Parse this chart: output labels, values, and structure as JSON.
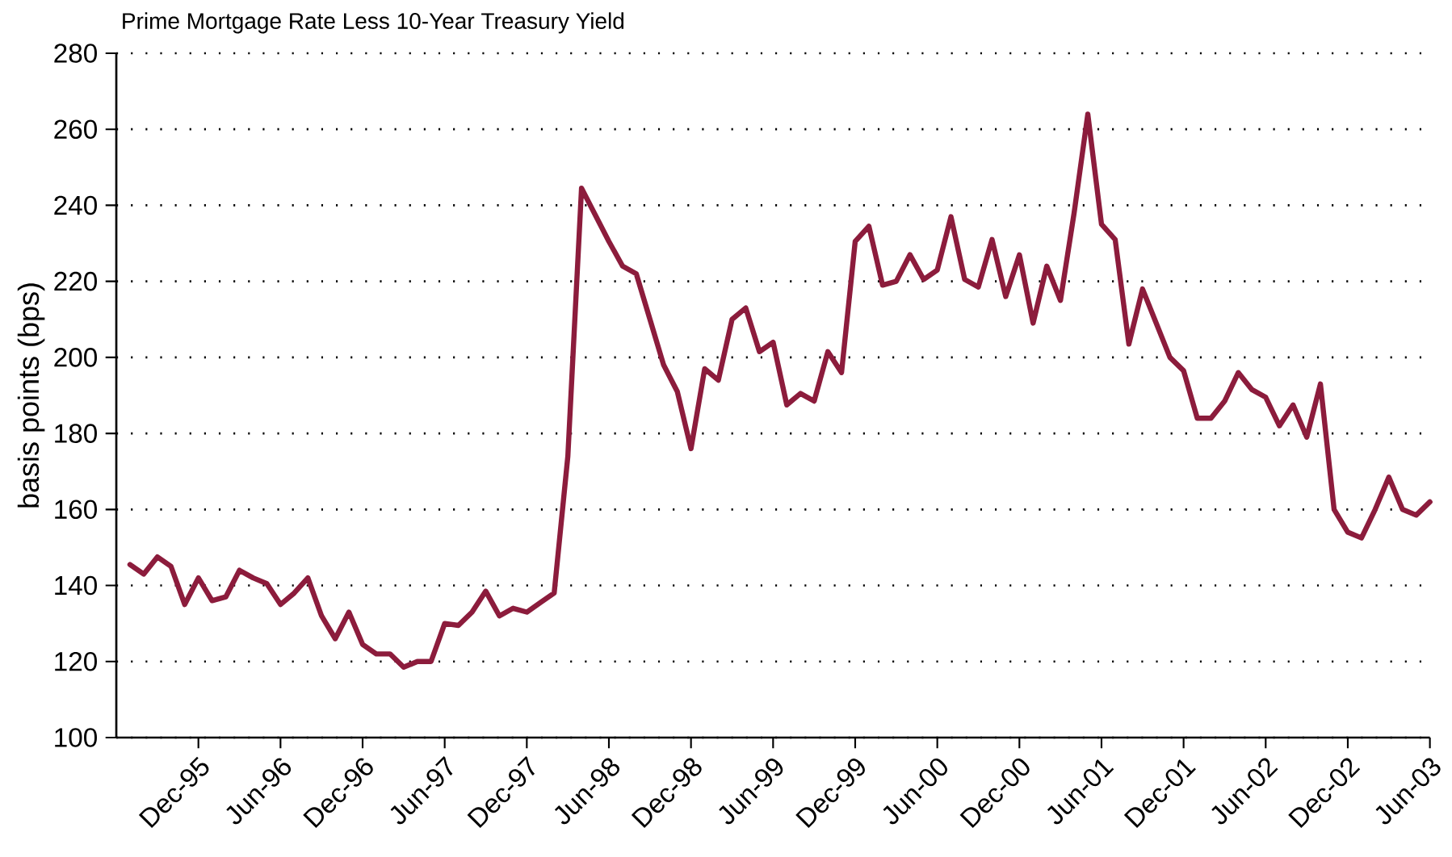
{
  "chart_data": {
    "type": "line",
    "title": "Prime Mortgage Rate Less 10-Year Treasury Yield",
    "ylabel": "basis points (bps)",
    "x": [
      "1995-07",
      "1995-08",
      "1995-09",
      "1995-10",
      "1995-11",
      "1995-12",
      "1996-01",
      "1996-02",
      "1996-03",
      "1996-04",
      "1996-05",
      "1996-06",
      "1996-07",
      "1996-08",
      "1996-09",
      "1996-10",
      "1996-11",
      "1996-12",
      "1997-01",
      "1997-02",
      "1997-03",
      "1997-04",
      "1997-05",
      "1997-06",
      "1997-07",
      "1997-08",
      "1997-09",
      "1997-10",
      "1997-11",
      "1997-12",
      "1998-01",
      "1998-02",
      "1998-03",
      "1998-04",
      "1998-05",
      "1998-06",
      "1998-07",
      "1998-08",
      "1998-09",
      "1998-10",
      "1998-11",
      "1998-12",
      "1999-01",
      "1999-02",
      "1999-03",
      "1999-04",
      "1999-05",
      "1999-06",
      "1999-07",
      "1999-08",
      "1999-09",
      "1999-10",
      "1999-11",
      "1999-12",
      "2000-01",
      "2000-02",
      "2000-03",
      "2000-04",
      "2000-05",
      "2000-06",
      "2000-07",
      "2000-08",
      "2000-09",
      "2000-10",
      "2000-11",
      "2000-12",
      "2001-01",
      "2001-02",
      "2001-03",
      "2001-04",
      "2001-05",
      "2001-06",
      "2001-07",
      "2001-08",
      "2001-09",
      "2001-10",
      "2001-11",
      "2001-12",
      "2002-01",
      "2002-02",
      "2002-03",
      "2002-04",
      "2002-05",
      "2002-06",
      "2002-07",
      "2002-08",
      "2002-09",
      "2002-10",
      "2002-11",
      "2002-12",
      "2003-01",
      "2003-02",
      "2003-03",
      "2003-04",
      "2003-05",
      "2003-06"
    ],
    "series": [
      {
        "color": "#8c1c3c",
        "values": [
          145.5,
          143,
          147.5,
          145,
          135,
          142,
          136,
          137,
          144,
          142,
          140.5,
          135,
          138,
          142,
          132,
          126,
          133,
          124.5,
          122,
          122,
          118.5,
          120,
          120,
          130,
          129.5,
          133,
          138.5,
          132,
          134,
          133,
          135.5,
          138,
          174,
          244.5,
          237.5,
          230.5,
          224,
          222,
          210,
          198,
          191,
          176,
          197,
          194,
          210,
          213,
          201.5,
          204,
          187.5,
          190.5,
          188.5,
          201.5,
          196,
          230.5,
          234.5,
          219,
          220,
          227,
          220.5,
          223,
          237,
          220.5,
          218.5,
          231,
          216,
          227,
          209,
          224,
          215,
          238,
          264,
          235,
          231,
          203.5,
          218,
          209,
          200,
          196.5,
          184,
          184,
          188.5,
          196,
          191.5,
          189.5,
          182,
          187.5,
          179,
          193,
          160,
          154,
          152.5,
          160,
          168.5,
          160,
          158.5,
          162
        ]
      }
    ],
    "xlim": [
      "1995-06",
      "2003-06"
    ],
    "xticks": [
      {
        "value": "1995-12",
        "label": "Dec-95"
      },
      {
        "value": "1996-06",
        "label": "Jun-96"
      },
      {
        "value": "1996-12",
        "label": "Dec-96"
      },
      {
        "value": "1997-06",
        "label": "Jun-97"
      },
      {
        "value": "1997-12",
        "label": "Dec-97"
      },
      {
        "value": "1998-06",
        "label": "Jun-98"
      },
      {
        "value": "1998-12",
        "label": "Dec-98"
      },
      {
        "value": "1999-06",
        "label": "Jun-99"
      },
      {
        "value": "1999-12",
        "label": "Dec-99"
      },
      {
        "value": "2000-06",
        "label": "Jun-00"
      },
      {
        "value": "2000-12",
        "label": "Dec-00"
      },
      {
        "value": "2001-06",
        "label": "Jun-01"
      },
      {
        "value": "2001-12",
        "label": "Dec-01"
      },
      {
        "value": "2002-06",
        "label": "Jun-02"
      },
      {
        "value": "2002-12",
        "label": "Dec-02"
      },
      {
        "value": "2003-06",
        "label": "Jun-03"
      }
    ],
    "ylim": [
      100,
      280
    ],
    "yticks": [
      100,
      120,
      140,
      160,
      180,
      200,
      220,
      240,
      260,
      280
    ],
    "grid": "y"
  }
}
